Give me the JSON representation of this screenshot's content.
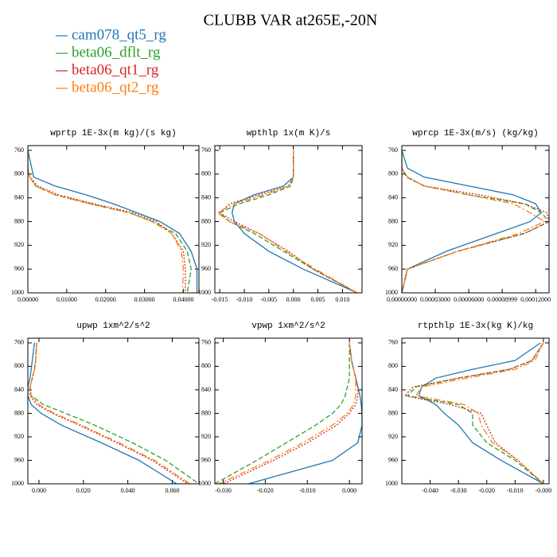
{
  "title": "CLUBB VAR at265E,-20N",
  "chart_data": [
    {
      "type": "line",
      "title": "wprtp  1E-3x(m kg)/(s kg)",
      "y": [
        760,
        790,
        805,
        820,
        835,
        850,
        865,
        880,
        900,
        930,
        960,
        1000
      ],
      "ylim": [
        752,
        1000
      ],
      "y_inverted": true,
      "yticks": [
        760,
        800,
        840,
        880,
        920,
        960,
        1000
      ],
      "xlim": [
        0,
        0.044
      ],
      "xticks": [
        {
          "value": 0,
          "label": "0.00000"
        },
        {
          "value": 0.01,
          "label": "0.01000"
        },
        {
          "value": 0.02,
          "label": "0.02000"
        },
        {
          "value": 0.03,
          "label": "0.03000"
        },
        {
          "value": 0.04,
          "label": "0.04000"
        }
      ],
      "series": [
        {
          "name": "cam078_qt5_rg",
          "color": "#1f77b4",
          "dash": "solid",
          "values": [
            0,
            0.001,
            0.0015,
            0.007,
            0.015,
            0.022,
            0.028,
            0.034,
            0.039,
            0.042,
            0.0435,
            0.0435
          ]
        },
        {
          "name": "beta06_dflt_rg",
          "color": "#2ca02c",
          "dash": "dashed",
          "values": [
            0,
            0,
            0.0005,
            0.002,
            0.007,
            0.016,
            0.026,
            0.032,
            0.038,
            0.041,
            0.042,
            0.041
          ]
        },
        {
          "name": "beta06_qt1_rg",
          "color": "#d62728",
          "dash": "dotted",
          "values": [
            0,
            0,
            0.0005,
            0.0025,
            0.008,
            0.017,
            0.027,
            0.033,
            0.037,
            0.04,
            0.0405,
            0.0405
          ]
        },
        {
          "name": "beta06_qt2_rg",
          "color": "#ff7f0e",
          "dash": "dashdot",
          "values": [
            0,
            0,
            0.0005,
            0.002,
            0.007,
            0.016,
            0.026,
            0.032,
            0.037,
            0.0395,
            0.04,
            0.0398
          ]
        }
      ]
    },
    {
      "type": "line",
      "title": "wpthlp  1x(m K)/s",
      "y": [
        760,
        790,
        805,
        820,
        835,
        850,
        865,
        880,
        900,
        930,
        960,
        1000
      ],
      "ylim": [
        752,
        1000
      ],
      "y_inverted": true,
      "yticks": [
        760,
        800,
        840,
        880,
        920,
        960,
        1000
      ],
      "xlim": [
        -0.016,
        0.014
      ],
      "xticks": [
        {
          "value": -0.015,
          "label": "-0.015"
        },
        {
          "value": -0.01,
          "label": "-0.010"
        },
        {
          "value": -0.005,
          "label": "-0.005"
        },
        {
          "value": 0,
          "label": "0.000"
        },
        {
          "value": 0.005,
          "label": "0.005"
        },
        {
          "value": 0.01,
          "label": "0.010"
        }
      ],
      "series": [
        {
          "name": "cam078_qt5_rg",
          "color": "#1f77b4",
          "dash": "solid",
          "values": [
            0,
            0,
            0,
            -0.002,
            -0.008,
            -0.012,
            -0.0125,
            -0.012,
            -0.01,
            -0.005,
            0.002,
            0.013
          ]
        },
        {
          "name": "beta06_dflt_rg",
          "color": "#2ca02c",
          "dash": "dashed",
          "values": [
            0,
            0,
            0,
            -0.0005,
            -0.005,
            -0.011,
            -0.015,
            -0.013,
            -0.008,
            -0.002,
            0.004,
            0.013
          ]
        },
        {
          "name": "beta06_qt1_rg",
          "color": "#d62728",
          "dash": "dotted",
          "values": [
            0,
            0,
            0,
            -0.001,
            -0.007,
            -0.013,
            -0.015,
            -0.012,
            -0.007,
            -0.001,
            0.004,
            0.013
          ]
        },
        {
          "name": "beta06_qt2_rg",
          "color": "#ff7f0e",
          "dash": "dashdot",
          "values": [
            0,
            0,
            0,
            -0.001,
            -0.006,
            -0.012,
            -0.0155,
            -0.013,
            -0.007,
            -0.0015,
            0.0045,
            0.013
          ]
        }
      ]
    },
    {
      "type": "line",
      "title": "wprcp  1E-3x(m/s) (kg/kg)",
      "y": [
        760,
        790,
        805,
        820,
        835,
        850,
        865,
        880,
        900,
        930,
        960,
        1000
      ],
      "ylim": [
        752,
        1000
      ],
      "y_inverted": true,
      "yticks": [
        760,
        800,
        840,
        880,
        920,
        960,
        1000
      ],
      "xlim": [
        0,
        0.000132
      ],
      "xticks": [
        {
          "value": 0,
          "label": "0.00000000"
        },
        {
          "value": 3e-05,
          "label": "0.00003000"
        },
        {
          "value": 6e-05,
          "label": "0.00006000"
        },
        {
          "value": 9e-05,
          "label": "0.00008999"
        },
        {
          "value": 0.00012,
          "label": "0.00012000"
        }
      ],
      "series": [
        {
          "name": "cam078_qt5_rg",
          "color": "#1f77b4",
          "dash": "solid",
          "values": [
            0,
            5e-06,
            2e-05,
            6e-05,
            0.0001,
            0.00012,
            0.000125,
            0.000115,
            8.5e-05,
            4e-05,
            5e-06,
            0
          ]
        },
        {
          "name": "beta06_dflt_rg",
          "color": "#2ca02c",
          "dash": "dashed",
          "values": [
            0,
            0,
            4e-06,
            2e-05,
            6e-05,
            0.00011,
            0.000125,
            0.000132,
            0.00011,
            5e-05,
            5e-06,
            0
          ]
        },
        {
          "name": "beta06_qt1_rg",
          "color": "#d62728",
          "dash": "dotted",
          "values": [
            0,
            0,
            5e-06,
            2e-05,
            7e-05,
            0.00011,
            0.00013,
            0.000132,
            0.00011,
            5e-05,
            5e-06,
            0
          ]
        },
        {
          "name": "beta06_qt2_rg",
          "color": "#ff7f0e",
          "dash": "dashdot",
          "values": [
            0,
            0,
            5e-06,
            2e-05,
            6e-05,
            0.0001,
            0.000115,
            0.000128,
            0.000105,
            5e-05,
            5e-06,
            0
          ]
        }
      ]
    },
    {
      "type": "line",
      "title": "upwp  1xm^2/s^2",
      "y": [
        760,
        790,
        805,
        820,
        835,
        850,
        865,
        880,
        900,
        930,
        960,
        1000
      ],
      "ylim": [
        752,
        1000
      ],
      "y_inverted": true,
      "yticks": [
        760,
        800,
        840,
        880,
        920,
        960,
        1000
      ],
      "xlim": [
        -0.005,
        0.072
      ],
      "xticks": [
        {
          "value": 0,
          "label": "0.000"
        },
        {
          "value": 0.02,
          "label": "0.020"
        },
        {
          "value": 0.04,
          "label": "0.040"
        },
        {
          "value": 0.06,
          "label": "0.060"
        }
      ],
      "series": [
        {
          "name": "cam078_qt5_rg",
          "color": "#1f77b4",
          "dash": "solid",
          "values": [
            -0.002,
            -0.003,
            -0.0035,
            -0.004,
            -0.005,
            -0.005,
            -0.0035,
            0.001,
            0.01,
            0.028,
            0.045,
            0.062
          ]
        },
        {
          "name": "beta06_dflt_rg",
          "color": "#2ca02c",
          "dash": "dashed",
          "values": [
            -0.001,
            -0.0015,
            -0.002,
            -0.003,
            -0.004,
            -0.0035,
            0.002,
            0.012,
            0.025,
            0.042,
            0.057,
            0.072
          ]
        },
        {
          "name": "beta06_qt1_rg",
          "color": "#d62728",
          "dash": "dotted",
          "values": [
            -0.001,
            -0.0015,
            -0.002,
            -0.003,
            -0.004,
            -0.004,
            -0.001,
            0.006,
            0.018,
            0.035,
            0.051,
            0.067
          ]
        },
        {
          "name": "beta06_qt2_rg",
          "color": "#ff7f0e",
          "dash": "dashdot",
          "values": [
            -0.001,
            -0.0015,
            -0.002,
            -0.003,
            -0.004,
            -0.0035,
            0,
            0.007,
            0.019,
            0.036,
            0.052,
            0.068
          ]
        }
      ]
    },
    {
      "type": "line",
      "title": "vpwp  1xm^2/s^2",
      "y": [
        760,
        790,
        805,
        820,
        835,
        850,
        865,
        880,
        900,
        930,
        960,
        1000
      ],
      "ylim": [
        752,
        1000
      ],
      "y_inverted": true,
      "yticks": [
        760,
        800,
        840,
        880,
        920,
        960,
        1000
      ],
      "xlim": [
        -0.032,
        0.003
      ],
      "xticks": [
        {
          "value": -0.03,
          "label": "-0.030"
        },
        {
          "value": -0.02,
          "label": "-0.020"
        },
        {
          "value": -0.01,
          "label": "-0.010"
        },
        {
          "value": 0,
          "label": "0.000"
        }
      ],
      "series": [
        {
          "name": "cam078_qt5_rg",
          "color": "#1f77b4",
          "dash": "solid",
          "values": [
            0,
            0.0005,
            0.001,
            0.0015,
            0.002,
            0.0025,
            0.0028,
            0.003,
            0.003,
            0.002,
            -0.004,
            -0.024
          ]
        },
        {
          "name": "beta06_dflt_rg",
          "color": "#2ca02c",
          "dash": "dashed",
          "values": [
            0,
            0,
            0,
            0,
            -0.0005,
            -0.001,
            -0.002,
            -0.004,
            -0.008,
            -0.015,
            -0.022,
            -0.032
          ]
        },
        {
          "name": "beta06_qt1_rg",
          "color": "#d62728",
          "dash": "dotted",
          "values": [
            0,
            0.0005,
            0.001,
            0.0015,
            0.002,
            0.002,
            0.0015,
            0,
            -0.003,
            -0.01,
            -0.018,
            -0.03
          ]
        },
        {
          "name": "beta06_qt2_rg",
          "color": "#ff7f0e",
          "dash": "dashdot",
          "values": [
            0,
            0.0005,
            0.001,
            0.0015,
            0.0015,
            0.0015,
            0.001,
            -0.0005,
            -0.004,
            -0.011,
            -0.019,
            -0.031
          ]
        }
      ]
    },
    {
      "type": "line",
      "title": "rtpthlp  1E-3x(kg K)/kg",
      "y": [
        760,
        790,
        805,
        820,
        835,
        850,
        865,
        880,
        900,
        930,
        960,
        1000
      ],
      "ylim": [
        752,
        1000
      ],
      "y_inverted": true,
      "yticks": [
        760,
        800,
        840,
        880,
        920,
        960,
        1000
      ],
      "xlim": [
        -0.05,
        0.002
      ],
      "xticks": [
        {
          "value": -0.04,
          "label": "-0.040"
        },
        {
          "value": -0.03,
          "label": "-0.030"
        },
        {
          "value": -0.02,
          "label": "-0.020"
        },
        {
          "value": -0.01,
          "label": "-0.010"
        },
        {
          "value": 0,
          "label": "-0.000"
        }
      ],
      "series": [
        {
          "name": "cam078_qt5_rg",
          "color": "#1f77b4",
          "dash": "solid",
          "values": [
            -0.001,
            -0.01,
            -0.025,
            -0.038,
            -0.043,
            -0.044,
            -0.038,
            -0.035,
            -0.03,
            -0.025,
            -0.015,
            0
          ]
        },
        {
          "name": "beta06_dflt_rg",
          "color": "#2ca02c",
          "dash": "dashed",
          "values": [
            0,
            -0.004,
            -0.012,
            -0.03,
            -0.045,
            -0.048,
            -0.03,
            -0.025,
            -0.025,
            -0.02,
            -0.01,
            0
          ]
        },
        {
          "name": "beta06_qt1_rg",
          "color": "#d62728",
          "dash": "dotted",
          "values": [
            0,
            -0.004,
            -0.012,
            -0.03,
            -0.046,
            -0.049,
            -0.033,
            -0.022,
            -0.02,
            -0.017,
            -0.009,
            0
          ]
        },
        {
          "name": "beta06_qt2_rg",
          "color": "#ff7f0e",
          "dash": "dashdot",
          "values": [
            0,
            -0.003,
            -0.01,
            -0.027,
            -0.043,
            -0.045,
            -0.028,
            -0.023,
            -0.022,
            -0.018,
            -0.009,
            0
          ]
        }
      ]
    }
  ]
}
